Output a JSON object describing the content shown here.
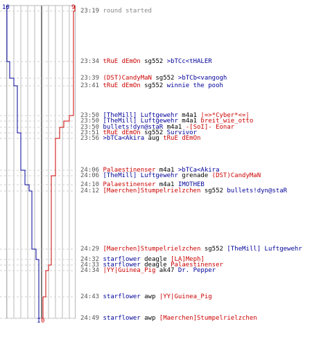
{
  "colors": {
    "red": "#cc0000",
    "blue": "#000099",
    "black": "#000000",
    "gray": "#888888",
    "time": "#555555"
  },
  "score": {
    "blue_start": "10",
    "red_start": "9",
    "blue_end": "1",
    "red_end": "0"
  },
  "log": [
    {
      "time": "23:19",
      "parts": [
        {
          "text": "round started",
          "color": "gray"
        }
      ]
    },
    {
      "time": "23:34",
      "parts": [
        {
          "text": "tRuE dEmOn",
          "color": "red"
        },
        {
          "text": " sg552 ",
          "color": "black"
        },
        {
          "text": ">bTCc<tHALER",
          "color": "blue"
        }
      ]
    },
    {
      "time": "23:39",
      "parts": [
        {
          "text": "(DST)CandyMaN",
          "color": "red"
        },
        {
          "text": " sg552 ",
          "color": "black"
        },
        {
          "text": ">bTCb<vangogh",
          "color": "blue"
        }
      ]
    },
    {
      "time": "23:41",
      "parts": [
        {
          "text": "tRuE dEmOn",
          "color": "red"
        },
        {
          "text": " sg552 ",
          "color": "black"
        },
        {
          "text": "winnie the pooh",
          "color": "blue"
        }
      ]
    },
    {
      "time": "23:50",
      "parts": [
        {
          "text": "[TheMill] Luftgewehr",
          "color": "blue"
        },
        {
          "text": " m4a1 ",
          "color": "black"
        },
        {
          "text": "|=>*Cyber*<=|",
          "color": "red"
        }
      ]
    },
    {
      "time": "23:50",
      "parts": [
        {
          "text": "[TheMill] Luftgewehr",
          "color": "blue"
        },
        {
          "text": " m4a1 ",
          "color": "black"
        },
        {
          "text": "breit_wie_otto",
          "color": "red"
        }
      ]
    },
    {
      "time": "23:50",
      "parts": [
        {
          "text": "bullets!dyn@staR",
          "color": "blue"
        },
        {
          "text": " m4a1 ",
          "color": "black"
        },
        {
          "text": "-[SoI]- Eonar",
          "color": "red"
        }
      ]
    },
    {
      "time": "23:51",
      "parts": [
        {
          "text": "tRuE dEmOn",
          "color": "red"
        },
        {
          "text": " sg552 ",
          "color": "black"
        },
        {
          "text": "Survivor",
          "color": "blue"
        }
      ]
    },
    {
      "time": "23:56",
      "parts": [
        {
          "text": ">bTCa<Akira",
          "color": "blue"
        },
        {
          "text": " aug ",
          "color": "black"
        },
        {
          "text": "tRuE dEmOn",
          "color": "red"
        }
      ]
    },
    {
      "time": "24:06",
      "parts": [
        {
          "text": "Palaestinenser",
          "color": "red"
        },
        {
          "text": " m4a1 ",
          "color": "black"
        },
        {
          "text": ">bTCa<Akira",
          "color": "blue"
        }
      ]
    },
    {
      "time": "24:06",
      "parts": [
        {
          "text": "[TheMill] Luftgewehr",
          "color": "blue"
        },
        {
          "text": " grenade ",
          "color": "black"
        },
        {
          "text": "(DST)CandyMaN",
          "color": "red"
        }
      ]
    },
    {
      "time": "24:10",
      "parts": [
        {
          "text": "Palaestinenser",
          "color": "red"
        },
        {
          "text": " m4a1 ",
          "color": "black"
        },
        {
          "text": "IMOTHEB",
          "color": "blue"
        }
      ]
    },
    {
      "time": "24:12",
      "parts": [
        {
          "text": "[Maerchen]Stumpelrielzchen",
          "color": "red"
        },
        {
          "text": " sg552 ",
          "color": "black"
        },
        {
          "text": "bullets!dyn@staR",
          "color": "blue"
        }
      ]
    },
    {
      "time": "24:29",
      "parts": [
        {
          "text": "[Maerchen]Stumpelrielzchen",
          "color": "red"
        },
        {
          "text": " sg552 ",
          "color": "black"
        },
        {
          "text": "[TheMill] Luftgewehr",
          "color": "blue"
        }
      ]
    },
    {
      "time": "24:32",
      "parts": [
        {
          "text": "starflower",
          "color": "blue"
        },
        {
          "text": " deagle ",
          "color": "black"
        },
        {
          "text": "[LA]Meph]",
          "color": "red"
        }
      ]
    },
    {
      "time": "24:33",
      "parts": [
        {
          "text": "starflower",
          "color": "blue"
        },
        {
          "text": " deagle ",
          "color": "black"
        },
        {
          "text": "Palaestinenser",
          "color": "red"
        }
      ]
    },
    {
      "time": "24:34",
      "parts": [
        {
          "text": "|YY|Guinea_Pig",
          "color": "red"
        },
        {
          "text": " ak47 ",
          "color": "black"
        },
        {
          "text": "Dr. Pepper",
          "color": "blue"
        }
      ]
    },
    {
      "time": "24:43",
      "parts": [
        {
          "text": "starflower",
          "color": "blue"
        },
        {
          "text": " awp ",
          "color": "black"
        },
        {
          "text": "|YY|Guinea_Pig",
          "color": "red"
        }
      ]
    },
    {
      "time": "24:49",
      "parts": [
        {
          "text": "starflower",
          "color": "blue"
        },
        {
          "text": " awp ",
          "color": "black"
        },
        {
          "text": "[Maerchen]Stumpelrielzchen",
          "color": "red"
        }
      ]
    }
  ]
}
